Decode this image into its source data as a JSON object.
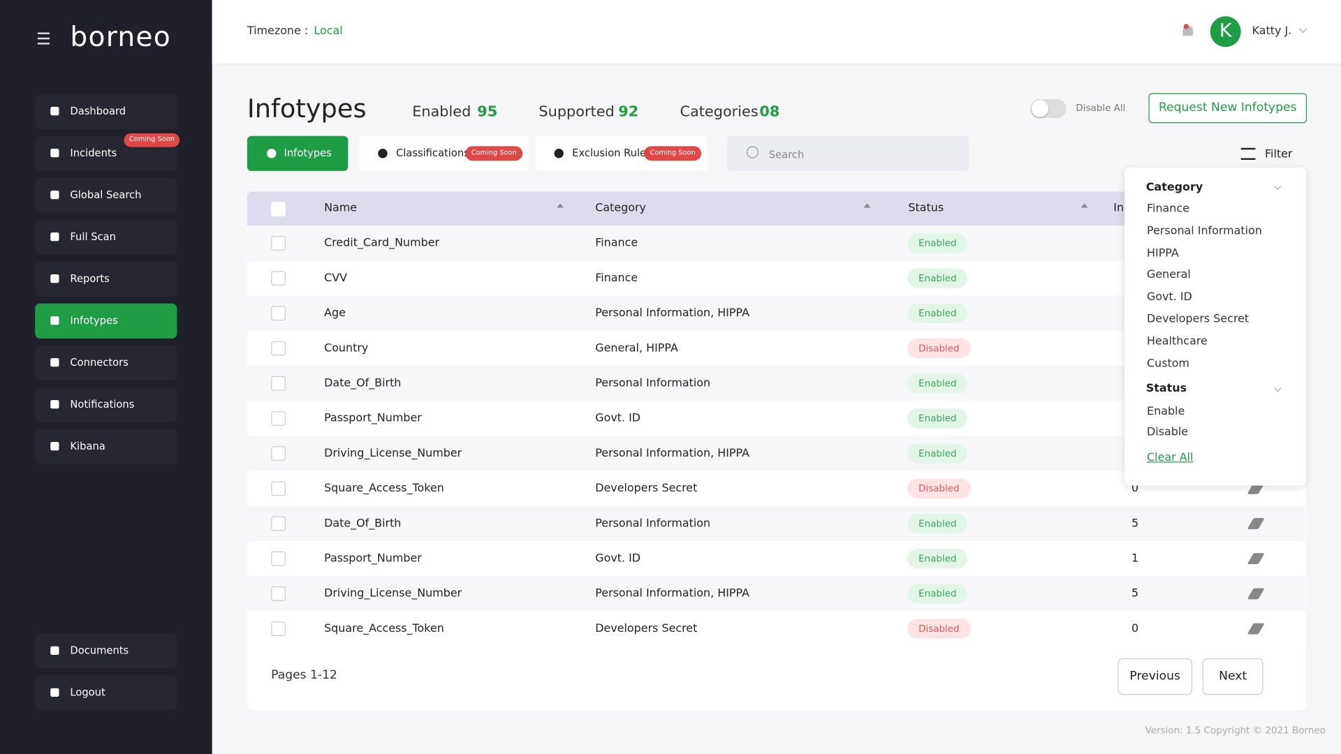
{
  "sidebar": {
    "logo": "borneo",
    "nav": [
      {
        "label": "Dashboard"
      },
      {
        "label": "Incidents",
        "badge": "Coming Soon"
      },
      {
        "label": "Global Search"
      },
      {
        "label": "Full Scan"
      },
      {
        "label": "Reports"
      },
      {
        "label": "Infotypes"
      },
      {
        "label": "Connectors"
      },
      {
        "label": "Notifications"
      },
      {
        "label": "Kibana"
      }
    ],
    "bottom": [
      {
        "label": "Documents"
      },
      {
        "label": "Logout"
      }
    ]
  },
  "header": {
    "timezone_label": "Timezone :",
    "timezone_value": "Local",
    "avatar": "K",
    "user": "Katty J."
  },
  "page": {
    "title": "Infotypes",
    "stats": [
      {
        "label": "Enabled",
        "value": "95"
      },
      {
        "label": "Supported",
        "value": "92"
      },
      {
        "label": "Categories",
        "value": "08"
      }
    ],
    "toggle_label": "Disable All",
    "request_button": "Request New Infotypes"
  },
  "tabs": [
    {
      "label": "Infotypes"
    },
    {
      "label": "Classifications",
      "badge": "Coming Soon"
    },
    {
      "label": "Exclusion Rules",
      "badge": "Coming Soon"
    }
  ],
  "search_placeholder": "Search",
  "filter_label": "Filter",
  "table": {
    "columns": [
      "Name",
      "Category",
      "Status",
      "In"
    ],
    "rows": [
      [
        "Credit_Card_Number",
        "Finance",
        "Enabled",
        null
      ],
      [
        "CVV",
        "Finance",
        "Enabled",
        null
      ],
      [
        "Age",
        "Personal Information, HIPPA",
        "Enabled",
        null
      ],
      [
        "Country",
        "General, HIPPA",
        "Disabled",
        null
      ],
      [
        "Date_Of_Birth",
        "Personal Information",
        "Enabled",
        null
      ],
      [
        "Passport_Number",
        "Govt. ID",
        "Enabled",
        null
      ],
      [
        "Driving_License_Number",
        "Personal Information, HIPPA",
        "Enabled",
        null
      ],
      [
        "Square_Access_Token",
        "Developers Secret",
        "Disabled",
        0
      ],
      [
        "Date_Of_Birth",
        "Personal Information",
        "Enabled",
        5
      ],
      [
        "Passport_Number",
        "Govt. ID",
        "Enabled",
        1
      ],
      [
        "Driving_License_Number",
        "Personal Information, HIPPA",
        "Enabled",
        5
      ],
      [
        "Square_Access_Token",
        "Developers Secret",
        "Disabled",
        0
      ]
    ]
  },
  "filter_panel": {
    "category_title": "Category",
    "categories": [
      "Finance",
      "Personal Information",
      "HIPPA",
      "General",
      "Govt. ID",
      "Developers Secret",
      "Healthcare",
      "Custom"
    ],
    "status_title": "Status",
    "statuses": [
      "Enable",
      "Disable"
    ],
    "clear": "Clear All"
  },
  "pagination": {
    "pages": "Pages 1-12",
    "previous": "Previous",
    "next": "Next"
  },
  "footer": "Version: 1.5 Copyright © 2021 Borneo"
}
